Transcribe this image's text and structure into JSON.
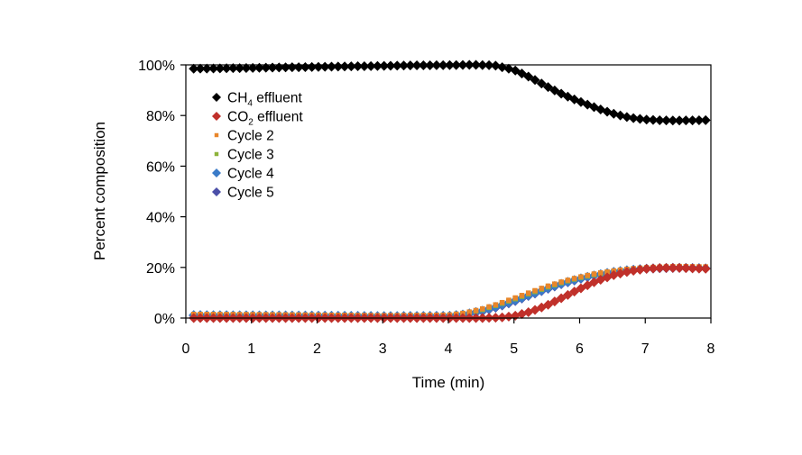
{
  "chart_data": {
    "type": "scatter",
    "title": "",
    "xlabel": "Time (min)",
    "ylabel": "Percent composition",
    "xlim": [
      0,
      8
    ],
    "ylim": [
      0,
      100
    ],
    "xticks": [
      "0",
      "1",
      "2",
      "3",
      "4",
      "5",
      "6",
      "7",
      "8"
    ],
    "yticks": [
      "0%",
      "20%",
      "40%",
      "60%",
      "80%",
      "100%"
    ],
    "grid": false,
    "legend_position": "top-left",
    "series": [
      {
        "name": "CH4 effluent",
        "label_main": "CH",
        "label_sub": "4",
        "label_rest": " effluent",
        "color": "#000000",
        "marker": "diamond",
        "points": [
          [
            0.12,
            98.5
          ],
          [
            0.5,
            98.6
          ],
          [
            1.0,
            98.8
          ],
          [
            1.5,
            99.0
          ],
          [
            2.0,
            99.2
          ],
          [
            2.5,
            99.4
          ],
          [
            3.0,
            99.6
          ],
          [
            3.5,
            99.8
          ],
          [
            4.0,
            99.9
          ],
          [
            4.4,
            100.0
          ],
          [
            4.7,
            99.8
          ],
          [
            5.0,
            98.0
          ],
          [
            5.25,
            95.0
          ],
          [
            5.5,
            91.5
          ],
          [
            5.75,
            88.2
          ],
          [
            6.0,
            85.5
          ],
          [
            6.25,
            83.0
          ],
          [
            6.5,
            80.8
          ],
          [
            6.75,
            79.2
          ],
          [
            7.0,
            78.4
          ],
          [
            7.25,
            78.1
          ],
          [
            7.5,
            78.0
          ],
          [
            7.75,
            78.1
          ],
          [
            8.0,
            78.2
          ]
        ]
      },
      {
        "name": "CO2 effluent",
        "label_main": "CO",
        "label_sub": "2",
        "label_rest": " effluent",
        "color": "#C0302A",
        "marker": "diamond",
        "points": [
          [
            0.12,
            0.0
          ],
          [
            1.0,
            0.0
          ],
          [
            2.0,
            0.0
          ],
          [
            3.0,
            0.0
          ],
          [
            4.0,
            0.0
          ],
          [
            4.5,
            0.0
          ],
          [
            4.8,
            0.2
          ],
          [
            5.0,
            0.8
          ],
          [
            5.25,
            2.5
          ],
          [
            5.5,
            5.0
          ],
          [
            5.75,
            8.2
          ],
          [
            6.0,
            11.5
          ],
          [
            6.25,
            14.5
          ],
          [
            6.5,
            16.8
          ],
          [
            6.75,
            18.4
          ],
          [
            7.0,
            19.4
          ],
          [
            7.25,
            19.8
          ],
          [
            7.5,
            19.8
          ],
          [
            7.75,
            19.6
          ],
          [
            8.0,
            19.4
          ]
        ]
      },
      {
        "name": "Cycle 2",
        "label_main": "Cycle 2",
        "label_sub": "",
        "label_rest": "",
        "color": "#E8862A",
        "marker": "square",
        "points": [
          [
            0.12,
            1.5
          ],
          [
            1.0,
            1.4
          ],
          [
            2.0,
            1.2
          ],
          [
            3.0,
            1.0
          ],
          [
            4.0,
            1.2
          ],
          [
            4.25,
            2.0
          ],
          [
            4.5,
            3.5
          ],
          [
            4.75,
            5.5
          ],
          [
            5.0,
            7.8
          ],
          [
            5.25,
            10.2
          ],
          [
            5.5,
            12.5
          ],
          [
            5.75,
            14.5
          ],
          [
            6.0,
            16.2
          ],
          [
            6.25,
            17.6
          ],
          [
            6.5,
            18.6
          ],
          [
            6.75,
            19.4
          ],
          [
            7.0,
            19.9
          ],
          [
            7.25,
            20.2
          ],
          [
            7.5,
            20.4
          ],
          [
            7.75,
            20.3
          ],
          [
            8.0,
            20.2
          ]
        ]
      },
      {
        "name": "Cycle 3",
        "label_main": "Cycle 3",
        "label_sub": "",
        "label_rest": "",
        "color": "#8DB33A",
        "marker": "square",
        "points": [
          [
            0.12,
            1.3
          ],
          [
            1.0,
            1.2
          ],
          [
            2.0,
            1.1
          ],
          [
            3.0,
            0.9
          ],
          [
            4.0,
            1.0
          ],
          [
            4.25,
            1.8
          ],
          [
            4.5,
            3.2
          ],
          [
            4.75,
            5.2
          ],
          [
            5.0,
            7.4
          ],
          [
            5.25,
            9.8
          ],
          [
            5.5,
            12.1
          ],
          [
            5.75,
            14.2
          ],
          [
            6.0,
            15.9
          ],
          [
            6.25,
            17.3
          ],
          [
            6.5,
            18.4
          ],
          [
            6.75,
            19.2
          ],
          [
            7.0,
            19.7
          ],
          [
            7.25,
            20.0
          ],
          [
            7.5,
            20.1
          ],
          [
            7.75,
            20.0
          ],
          [
            8.0,
            19.9
          ]
        ]
      },
      {
        "name": "Cycle 4",
        "label_main": "Cycle 4",
        "label_sub": "",
        "label_rest": "",
        "color": "#3A7BC8",
        "marker": "diamond",
        "points": [
          [
            0.12,
            1.2
          ],
          [
            1.0,
            1.1
          ],
          [
            2.0,
            1.0
          ],
          [
            3.0,
            0.8
          ],
          [
            4.0,
            0.9
          ],
          [
            4.25,
            1.5
          ],
          [
            4.5,
            2.8
          ],
          [
            4.75,
            4.6
          ],
          [
            5.0,
            6.8
          ],
          [
            5.25,
            9.2
          ],
          [
            5.5,
            11.6
          ],
          [
            5.75,
            13.8
          ],
          [
            6.0,
            15.6
          ],
          [
            6.25,
            17.0
          ],
          [
            6.5,
            18.2
          ],
          [
            6.75,
            19.0
          ],
          [
            7.0,
            19.5
          ],
          [
            7.25,
            19.8
          ],
          [
            7.5,
            19.9
          ],
          [
            7.75,
            19.8
          ],
          [
            8.0,
            19.6
          ]
        ]
      },
      {
        "name": "Cycle 5",
        "label_main": "Cycle 5",
        "label_sub": "",
        "label_rest": "",
        "color": "#4B4FA8",
        "marker": "diamond",
        "points": [
          [
            0.12,
            1.0
          ],
          [
            1.0,
            0.9
          ],
          [
            2.0,
            0.8
          ],
          [
            3.0,
            0.7
          ],
          [
            4.0,
            0.8
          ],
          [
            4.25,
            1.3
          ],
          [
            4.5,
            2.5
          ],
          [
            4.75,
            4.3
          ],
          [
            5.0,
            6.5
          ],
          [
            5.25,
            9.0
          ],
          [
            5.5,
            11.4
          ],
          [
            5.75,
            13.6
          ],
          [
            6.0,
            15.4
          ],
          [
            6.25,
            16.9
          ],
          [
            6.5,
            18.0
          ],
          [
            6.75,
            18.9
          ],
          [
            7.0,
            19.4
          ],
          [
            7.25,
            19.7
          ],
          [
            7.5,
            19.8
          ],
          [
            7.75,
            19.7
          ],
          [
            8.0,
            19.5
          ]
        ]
      }
    ]
  }
}
